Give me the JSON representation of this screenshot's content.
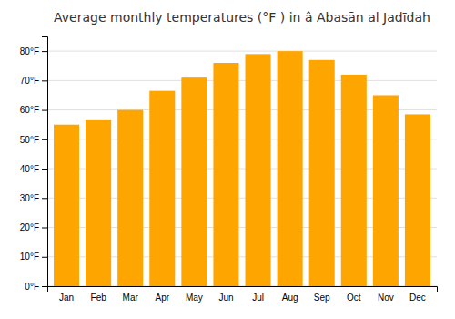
{
  "chart_data": {
    "type": "bar",
    "title": "Average monthly temperatures (°F ) in â Abasān al Jadīdah",
    "categories": [
      "Jan",
      "Feb",
      "Mar",
      "Apr",
      "May",
      "Jun",
      "Jul",
      "Aug",
      "Sep",
      "Oct",
      "Nov",
      "Dec"
    ],
    "values": [
      55,
      56.5,
      60,
      66.5,
      71,
      76,
      79,
      80,
      77,
      72,
      65,
      58.5
    ],
    "color": "#FFA500",
    "ylim": [
      0,
      85
    ],
    "yticks": [
      {
        "value": 0,
        "label": "0°F"
      },
      {
        "value": 10,
        "label": "10°F"
      },
      {
        "value": 20,
        "label": "20°F"
      },
      {
        "value": 30,
        "label": "30°F"
      },
      {
        "value": 40,
        "label": "40°F"
      },
      {
        "value": 50,
        "label": "50°F"
      },
      {
        "value": 60,
        "label": "60°F"
      },
      {
        "value": 70,
        "label": "70°F"
      },
      {
        "value": 80,
        "label": "80°F"
      }
    ],
    "grid": true
  }
}
